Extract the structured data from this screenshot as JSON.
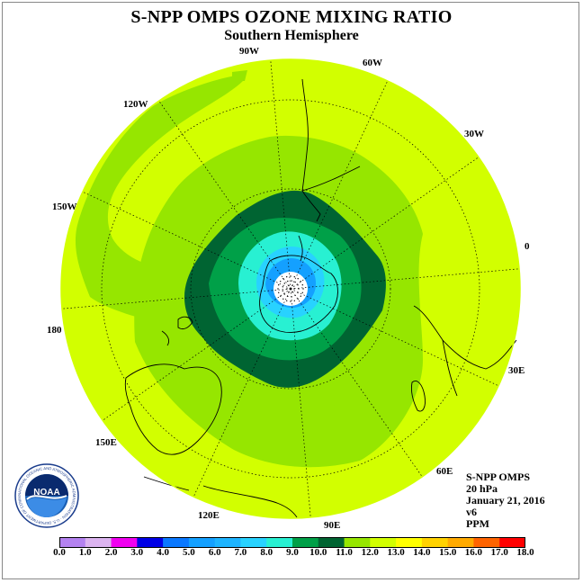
{
  "header": {
    "title": "S-NPP OMPS OZONE MIXING RATIO",
    "subtitle": "Southern Hemisphere"
  },
  "map": {
    "projection": "south polar stereographic",
    "longitude_labels": [
      "90W",
      "60W",
      "30W",
      "0",
      "30E",
      "60E",
      "90E",
      "120E",
      "150E",
      "180",
      "150W",
      "120W"
    ],
    "latitude_circles_deg": [
      -30,
      -60
    ]
  },
  "info": {
    "lines": [
      "S-NPP OMPS",
      "20 hPa",
      "January 21, 2016",
      "v6",
      "PPM"
    ]
  },
  "colorbar": {
    "ticks": [
      "0.0",
      "1.0",
      "2.0",
      "3.0",
      "4.0",
      "5.0",
      "6.0",
      "7.0",
      "8.0",
      "9.0",
      "10.0",
      "11.0",
      "12.0",
      "13.0",
      "14.0",
      "15.0",
      "16.0",
      "17.0",
      "18.0"
    ],
    "colors": [
      "#b482f0",
      "#dcb4f0",
      "#f000f0",
      "#0000e6",
      "#0a78ff",
      "#14a0ff",
      "#1eb4ff",
      "#28d2ff",
      "#28f0d2",
      "#00a048",
      "#006432",
      "#96e600",
      "#d2ff00",
      "#ffff00",
      "#ffd200",
      "#ffaa00",
      "#ff6400",
      "#ff0000",
      "#965a3c"
    ]
  },
  "logo": {
    "text": "NOAA",
    "ring_text": "NATIONAL OCEANIC AND ATMOSPHERIC ADMINISTRATION · U.S. DEPARTMENT OF COMMERCE"
  }
}
